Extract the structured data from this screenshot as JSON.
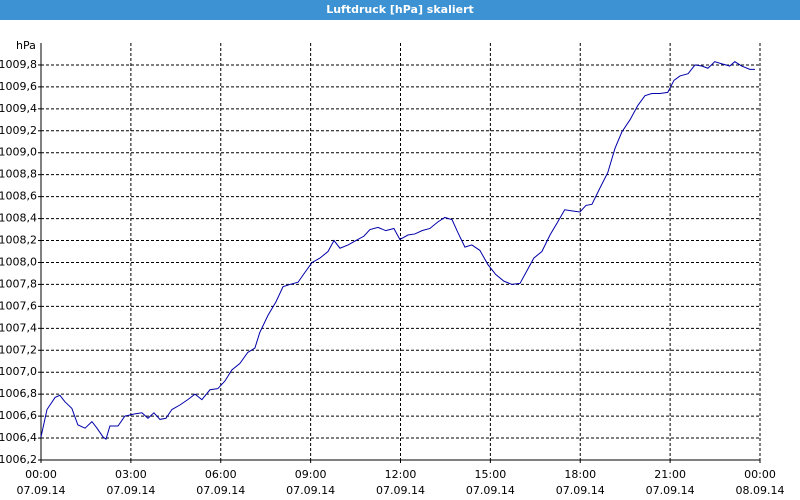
{
  "chart_data": {
    "type": "line",
    "title": "Luftdruck [hPa] skaliert",
    "y_label": "hPa",
    "xlim": [
      0,
      24
    ],
    "ylim": [
      1006.2,
      1010.0
    ],
    "grid": true,
    "xticks": [
      {
        "value": 0,
        "label": "00:00"
      },
      {
        "value": 3,
        "label": "03:00"
      },
      {
        "value": 6,
        "label": "06:00"
      },
      {
        "value": 9,
        "label": "09:00"
      },
      {
        "value": 12,
        "label": "12:00"
      },
      {
        "value": 15,
        "label": "15:00"
      },
      {
        "value": 18,
        "label": "18:00"
      },
      {
        "value": 21,
        "label": "21:00"
      },
      {
        "value": 24,
        "label": "00:00"
      }
    ],
    "xtick_dates": [
      "07.09.14",
      "07.09.14",
      "07.09.14",
      "07.09.14",
      "07.09.14",
      "07.09.14",
      "07.09.14",
      "07.09.14",
      "08.09.14"
    ],
    "yticks": [
      {
        "value": 1006.2,
        "label": "1006,2"
      },
      {
        "value": 1006.4,
        "label": "1006,4"
      },
      {
        "value": 1006.6,
        "label": "1006,6"
      },
      {
        "value": 1006.8,
        "label": "1006,8"
      },
      {
        "value": 1007.0,
        "label": "1007,0"
      },
      {
        "value": 1007.2,
        "label": "1007,2"
      },
      {
        "value": 1007.4,
        "label": "1007,4"
      },
      {
        "value": 1007.6,
        "label": "1007,6"
      },
      {
        "value": 1007.8,
        "label": "1007,8"
      },
      {
        "value": 1008.0,
        "label": "1008,0"
      },
      {
        "value": 1008.2,
        "label": "1008,2"
      },
      {
        "value": 1008.4,
        "label": "1008,4"
      },
      {
        "value": 1008.6,
        "label": "1008,6"
      },
      {
        "value": 1008.8,
        "label": "1008,8"
      },
      {
        "value": 1009.0,
        "label": "1009,0"
      },
      {
        "value": 1009.2,
        "label": "1009,2"
      },
      {
        "value": 1009.4,
        "label": "1009,4"
      },
      {
        "value": 1009.6,
        "label": "1009,6"
      },
      {
        "value": 1009.8,
        "label": "1009,8"
      }
    ],
    "series": [
      {
        "color": "#0000aa",
        "x": [
          0,
          0.2,
          0.47,
          0.63,
          0.8,
          1.03,
          1.23,
          1.47,
          1.7,
          1.87,
          2.07,
          2.17,
          2.3,
          2.57,
          2.8,
          3.13,
          3.37,
          3.57,
          3.77,
          3.97,
          4.17,
          4.37,
          4.63,
          4.9,
          5.14,
          5.37,
          5.64,
          5.9,
          6.14,
          6.37,
          6.64,
          6.9,
          7.14,
          7.3,
          7.58,
          7.84,
          8.08,
          8.31,
          8.58,
          8.81,
          9.05,
          9.31,
          9.58,
          9.78,
          9.98,
          10.25,
          10.51,
          10.78,
          10.98,
          11.25,
          11.51,
          11.78,
          11.98,
          12.25,
          12.48,
          12.72,
          12.98,
          13.25,
          13.48,
          13.72,
          13.92,
          14.15,
          14.38,
          14.65,
          14.92,
          15.18,
          15.45,
          15.72,
          15.99,
          16.19,
          16.45,
          16.72,
          16.99,
          17.25,
          17.48,
          17.72,
          17.99,
          18.19,
          18.39,
          18.66,
          18.92,
          19.16,
          19.39,
          19.66,
          19.92,
          20.16,
          20.39,
          20.66,
          20.92,
          21.13,
          21.33,
          21.6,
          21.83,
          22.06,
          22.26,
          22.49,
          22.73,
          22.99,
          23.16,
          23.39,
          23.66,
          23.83
        ],
        "values": [
          1006.41,
          1006.66,
          1006.77,
          1006.79,
          1006.73,
          1006.67,
          1006.52,
          1006.49,
          1006.55,
          1006.49,
          1006.41,
          1006.39,
          1006.51,
          1006.51,
          1006.6,
          1006.62,
          1006.63,
          1006.58,
          1006.63,
          1006.57,
          1006.58,
          1006.66,
          1006.7,
          1006.75,
          1006.8,
          1006.75,
          1006.84,
          1006.85,
          1006.92,
          1007.02,
          1007.08,
          1007.18,
          1007.22,
          1007.36,
          1007.52,
          1007.64,
          1007.78,
          1007.8,
          1007.82,
          1007.91,
          1008.0,
          1008.04,
          1008.1,
          1008.2,
          1008.13,
          1008.16,
          1008.2,
          1008.24,
          1008.3,
          1008.32,
          1008.29,
          1008.31,
          1008.21,
          1008.25,
          1008.26,
          1008.29,
          1008.31,
          1008.37,
          1008.41,
          1008.39,
          1008.27,
          1008.14,
          1008.16,
          1008.11,
          1007.98,
          1007.89,
          1007.83,
          1007.8,
          1007.81,
          1007.91,
          1008.04,
          1008.1,
          1008.25,
          1008.37,
          1008.48,
          1008.47,
          1008.46,
          1008.52,
          1008.53,
          1008.68,
          1008.82,
          1009.04,
          1009.19,
          1009.3,
          1009.43,
          1009.52,
          1009.54,
          1009.54,
          1009.55,
          1009.66,
          1009.7,
          1009.72,
          1009.8,
          1009.79,
          1009.77,
          1009.83,
          1009.81,
          1009.79,
          1009.83,
          1009.79,
          1009.76,
          1009.76
        ]
      }
    ]
  }
}
